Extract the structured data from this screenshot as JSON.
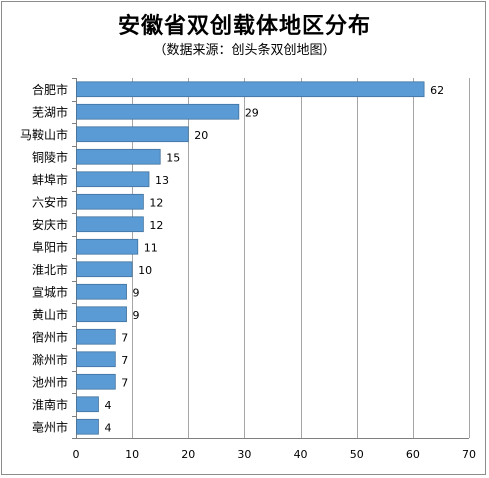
{
  "chart_data": {
    "type": "bar",
    "orientation": "horizontal",
    "title": "安徽省双创载体地区分布",
    "subtitle": "（数据来源：创头条双创地图）",
    "categories": [
      "合肥市",
      "芜湖市",
      "马鞍山市",
      "铜陵市",
      "蚌埠市",
      "六安市",
      "安庆市",
      "阜阳市",
      "淮北市",
      "宣城市",
      "黄山市",
      "宿州市",
      "滁州市",
      "池州市",
      "淮南市",
      "亳州市"
    ],
    "values": [
      62,
      29,
      20,
      15,
      13,
      12,
      12,
      11,
      10,
      9,
      9,
      7,
      7,
      7,
      4,
      4
    ],
    "xlim": [
      0,
      70
    ],
    "xticks": [
      0,
      10,
      20,
      30,
      40,
      50,
      60,
      70
    ],
    "grid": true,
    "legend": "none",
    "bar_color": "#5b9bd5",
    "bar_border_color": "#41719c",
    "grid_color": "#a6a6a6"
  }
}
